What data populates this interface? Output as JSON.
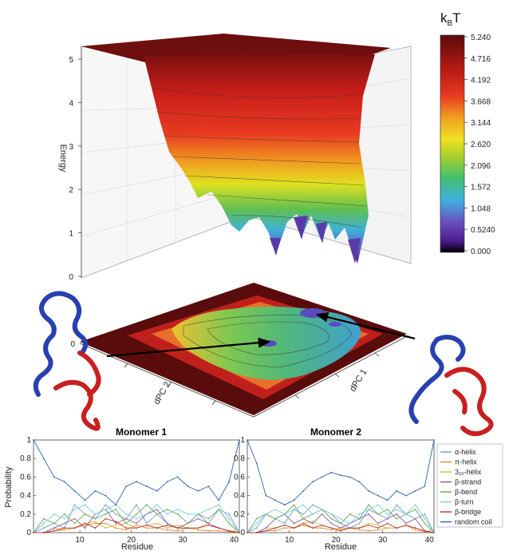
{
  "colors": {
    "alpha_helix": "#6f9bd2",
    "pi_helix": "#e08a30",
    "three10_helix": "#d8b830",
    "beta_strand": "#8a5aa0",
    "beta_bend": "#6aa84f",
    "beta_turn": "#7fc8e0",
    "beta_bridge": "#b83228",
    "random_coil": "#2f5fa8",
    "protein_blue": "#2a3fb0",
    "protein_red": "#c82020"
  },
  "chart_data": [
    {
      "type": "surface",
      "zlabel": "Energy",
      "z_ticks": [
        "0",
        "1",
        "2",
        "3",
        "4",
        "5"
      ],
      "zlim": [
        0,
        5.24
      ],
      "x_axis_label": "dPC 1",
      "y_axis_label": "dPC 2",
      "colorbar": {
        "title_main": "k",
        "title_sub": "B",
        "title_tail": "T",
        "ticks": [
          "5.240",
          "4.716",
          "4.192",
          "3.668",
          "3.144",
          "2.620",
          "2.096",
          "1.572",
          "1.048",
          "0.5240",
          "0.000"
        ],
        "range": [
          0,
          5.24
        ]
      },
      "projection_zero_label": "0"
    },
    {
      "type": "line",
      "title": "Monomer 1",
      "xlabel": "Residue",
      "ylabel": "Probability",
      "xlim": [
        1,
        41
      ],
      "ylim": [
        0,
        1
      ],
      "x_ticks": [
        "10",
        "20",
        "30",
        "40"
      ],
      "y_ticks": [
        "0",
        "0.2",
        "0.4",
        "0.6",
        "0.8",
        "1"
      ],
      "x": [
        1,
        3,
        5,
        7,
        9,
        11,
        13,
        15,
        17,
        19,
        21,
        23,
        25,
        27,
        29,
        31,
        33,
        35,
        37,
        39,
        41
      ],
      "series": [
        {
          "name": "α-helix",
          "color_key": "alpha_helix",
          "values": [
            0,
            0.05,
            0.1,
            0.05,
            0.3,
            0.2,
            0.15,
            0.3,
            0.2,
            0.15,
            0.3,
            0.1,
            0.2,
            0.1,
            0.05,
            0.1,
            0.2,
            0.1,
            0.25,
            0.2,
            0
          ]
        },
        {
          "name": "π-helix",
          "color_key": "pi_helix",
          "values": [
            0,
            0,
            0.02,
            0.03,
            0.05,
            0.08,
            0.1,
            0.1,
            0.05,
            0.03,
            0.08,
            0.05,
            0.05,
            0.03,
            0.02,
            0.05,
            0.03,
            0.02,
            0.02,
            0.01,
            0
          ]
        },
        {
          "name": "3₁₀-helix",
          "color_key": "three10_helix",
          "values": [
            0,
            0,
            0.05,
            0.03,
            0.05,
            0.1,
            0.12,
            0.05,
            0.08,
            0.1,
            0.05,
            0.08,
            0.1,
            0.05,
            0.08,
            0.05,
            0.05,
            0.1,
            0.05,
            0.02,
            0
          ]
        },
        {
          "name": "β-strand",
          "color_key": "beta_strand",
          "values": [
            0,
            0,
            0.05,
            0.1,
            0.15,
            0.05,
            0.2,
            0.25,
            0.1,
            0.15,
            0.1,
            0.2,
            0.25,
            0.1,
            0.05,
            0.1,
            0.15,
            0.1,
            0.05,
            0.02,
            0
          ]
        },
        {
          "name": "β-bend",
          "color_key": "beta_bend",
          "values": [
            0,
            0.15,
            0.1,
            0.2,
            0.1,
            0.2,
            0.15,
            0.2,
            0.25,
            0.1,
            0.2,
            0.3,
            0.2,
            0.25,
            0.2,
            0.1,
            0.2,
            0.15,
            0.25,
            0.1,
            0
          ]
        },
        {
          "name": "β-turn",
          "color_key": "beta_turn",
          "values": [
            0,
            0.1,
            0.2,
            0.15,
            0.25,
            0.3,
            0.2,
            0.25,
            0.3,
            0.2,
            0.15,
            0.2,
            0.3,
            0.2,
            0.25,
            0.2,
            0.2,
            0.25,
            0.3,
            0.15,
            0
          ]
        },
        {
          "name": "β-bridge",
          "color_key": "beta_bridge",
          "values": [
            0,
            0,
            0.02,
            0.05,
            0.05,
            0.1,
            0.05,
            0.15,
            0.12,
            0.05,
            0.05,
            0.08,
            0.05,
            0.08,
            0.05,
            0.05,
            0.05,
            0.08,
            0.05,
            0.02,
            0
          ]
        },
        {
          "name": "random coil",
          "color_key": "random_coil",
          "values": [
            1,
            0.8,
            0.6,
            0.55,
            0.45,
            0.35,
            0.45,
            0.4,
            0.3,
            0.5,
            0.55,
            0.5,
            0.45,
            0.55,
            0.6,
            0.5,
            0.45,
            0.5,
            0.35,
            0.55,
            1
          ]
        }
      ]
    },
    {
      "type": "line",
      "title": "Monomer 2",
      "xlabel": "Residue",
      "ylim": [
        0,
        1
      ],
      "xlim": [
        1,
        41
      ],
      "x_ticks": [
        "10",
        "20",
        "30",
        "40"
      ],
      "y_ticks": [
        "0",
        "0.2",
        "0.4",
        "0.6",
        "0.8",
        "1"
      ],
      "x": [
        1,
        3,
        5,
        7,
        9,
        11,
        13,
        15,
        17,
        19,
        21,
        23,
        25,
        27,
        29,
        31,
        33,
        35,
        37,
        39,
        41
      ],
      "series": [
        {
          "name": "α-helix",
          "color_key": "alpha_helix",
          "values": [
            0,
            0.05,
            0.2,
            0.15,
            0.1,
            0.25,
            0.2,
            0.3,
            0.25,
            0.2,
            0.1,
            0.05,
            0.1,
            0.25,
            0.2,
            0.15,
            0.3,
            0.2,
            0.15,
            0.2,
            0
          ]
        },
        {
          "name": "π-helix",
          "color_key": "pi_helix",
          "values": [
            0,
            0,
            0.02,
            0.02,
            0.05,
            0.05,
            0.08,
            0.05,
            0.05,
            0.03,
            0.05,
            0.05,
            0.03,
            0.02,
            0.03,
            0.05,
            0.05,
            0.08,
            0.03,
            0.01,
            0
          ]
        },
        {
          "name": "3₁₀-helix",
          "color_key": "three10_helix",
          "values": [
            0,
            0,
            0.05,
            0.05,
            0.08,
            0.05,
            0.1,
            0.12,
            0.08,
            0.05,
            0.03,
            0.05,
            0.05,
            0.1,
            0.08,
            0.05,
            0.05,
            0.08,
            0.05,
            0.02,
            0
          ]
        },
        {
          "name": "β-strand",
          "color_key": "beta_strand",
          "values": [
            0,
            0,
            0.05,
            0.15,
            0.2,
            0.1,
            0.15,
            0.1,
            0.2,
            0.1,
            0.05,
            0.1,
            0.15,
            0.2,
            0.1,
            0.15,
            0.2,
            0.1,
            0.15,
            0.02,
            0
          ]
        },
        {
          "name": "β-bend",
          "color_key": "beta_bend",
          "values": [
            0,
            0.15,
            0.2,
            0.15,
            0.2,
            0.3,
            0.15,
            0.2,
            0.25,
            0.15,
            0.1,
            0.2,
            0.15,
            0.3,
            0.2,
            0.25,
            0.15,
            0.2,
            0.25,
            0.1,
            0
          ]
        },
        {
          "name": "β-turn",
          "color_key": "beta_turn",
          "values": [
            0,
            0.1,
            0.2,
            0.25,
            0.2,
            0.25,
            0.3,
            0.2,
            0.25,
            0.2,
            0.15,
            0.1,
            0.2,
            0.25,
            0.3,
            0.2,
            0.25,
            0.2,
            0.3,
            0.15,
            0
          ]
        },
        {
          "name": "β-bridge",
          "color_key": "beta_bridge",
          "values": [
            0,
            0,
            0.02,
            0.05,
            0.08,
            0.05,
            0.1,
            0.05,
            0.08,
            0.05,
            0.02,
            0.05,
            0.05,
            0.08,
            0.05,
            0.1,
            0.05,
            0.08,
            0.05,
            0.02,
            0
          ]
        },
        {
          "name": "random coil",
          "color_key": "random_coil",
          "values": [
            1,
            0.75,
            0.4,
            0.35,
            0.3,
            0.35,
            0.45,
            0.55,
            0.6,
            0.65,
            0.62,
            0.6,
            0.55,
            0.45,
            0.4,
            0.35,
            0.45,
            0.4,
            0.45,
            0.5,
            1
          ]
        }
      ]
    }
  ]
}
